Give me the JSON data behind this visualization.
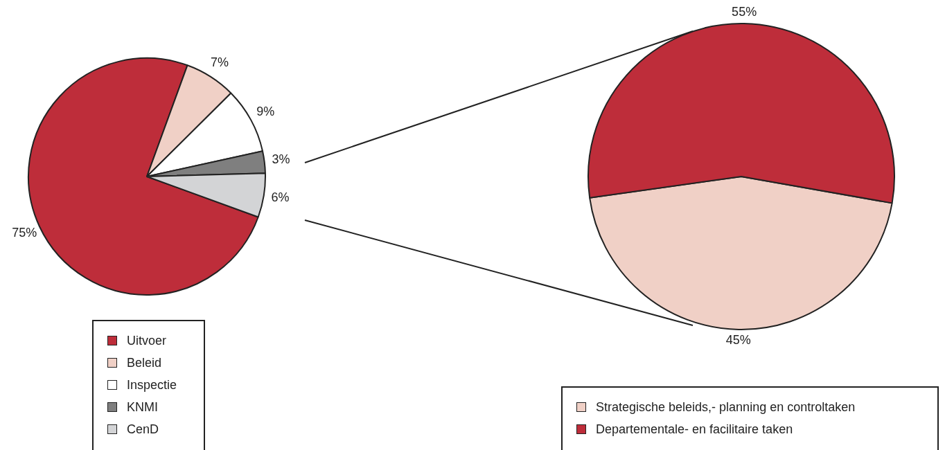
{
  "chart_data": [
    {
      "type": "pie",
      "categories": [
        "Uitvoer",
        "Beleid",
        "Inspectie",
        "KNMI",
        "CenD"
      ],
      "values": [
        75,
        7,
        9,
        3,
        6
      ],
      "colors": [
        "#be2d3a",
        "#f0d0c6",
        "#ffffff",
        "#7f7f7f",
        "#d3d4d6"
      ],
      "value_labels": [
        "75%",
        "7%",
        "9%",
        "3%",
        "6%"
      ],
      "legend": "bottom"
    },
    {
      "type": "pie",
      "categories": [
        "Strategische beleids,- planning en controltaken",
        "Departementale- en facilitaire taken"
      ],
      "values": [
        45,
        55
      ],
      "colors": [
        "#f0d0c6",
        "#be2d3a"
      ],
      "value_labels": [
        "45%",
        "55%"
      ],
      "legend": "bottom"
    }
  ]
}
